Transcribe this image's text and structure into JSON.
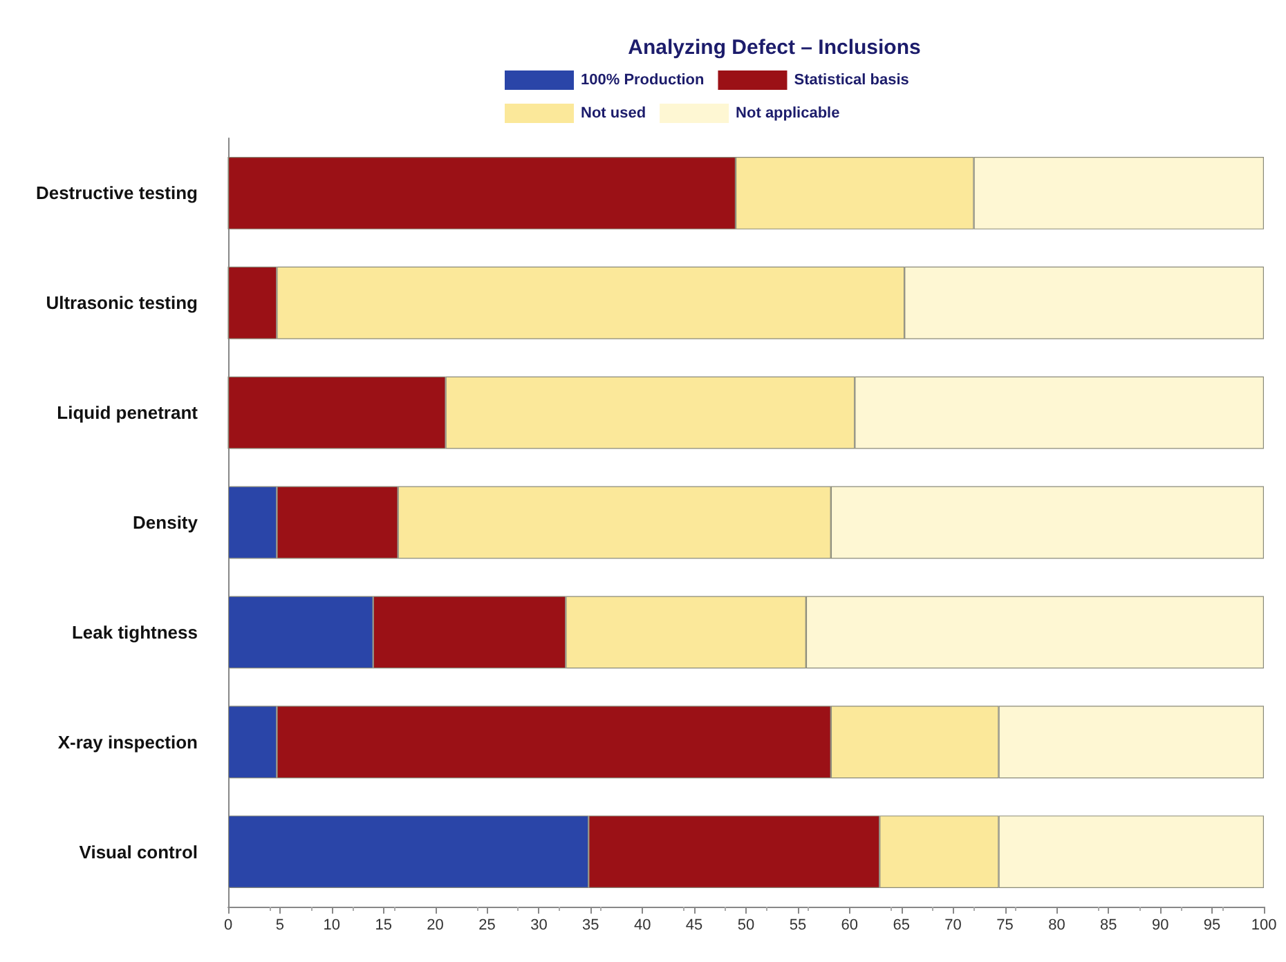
{
  "chart_data": {
    "type": "bar",
    "orientation": "horizontal",
    "stacked": true,
    "title": "Analyzing Defect – Inclusions",
    "categories": [
      "Destructive testing",
      "Ultrasonic testing",
      "Liquid penetrant",
      "Density",
      "Leak tightness",
      "X-ray inspection",
      "Visual control"
    ],
    "series": [
      {
        "name": "100% Production",
        "color": "#2a45a8",
        "values": [
          0,
          0,
          0,
          4.7,
          14,
          4.7,
          34.8
        ]
      },
      {
        "name": "Statistical basis",
        "color": "#9b1116",
        "values": [
          49,
          4.7,
          21,
          11.7,
          18.6,
          53.5,
          28.1
        ]
      },
      {
        "name": "Not used",
        "color": "#fbe89a",
        "values": [
          23,
          60.6,
          39.5,
          41.8,
          23.2,
          16.2,
          11.5
        ]
      },
      {
        "name": "Not applicable",
        "color": "#fef7d3",
        "values": [
          28,
          34.7,
          39.5,
          41.8,
          44.2,
          25.6,
          25.6
        ]
      }
    ],
    "xlim": [
      0,
      100
    ],
    "xticks": [
      0,
      5,
      10,
      15,
      20,
      25,
      30,
      35,
      40,
      45,
      50,
      55,
      60,
      65,
      70,
      75,
      80,
      85,
      90,
      95,
      100
    ],
    "grid": false,
    "legend": "top"
  }
}
